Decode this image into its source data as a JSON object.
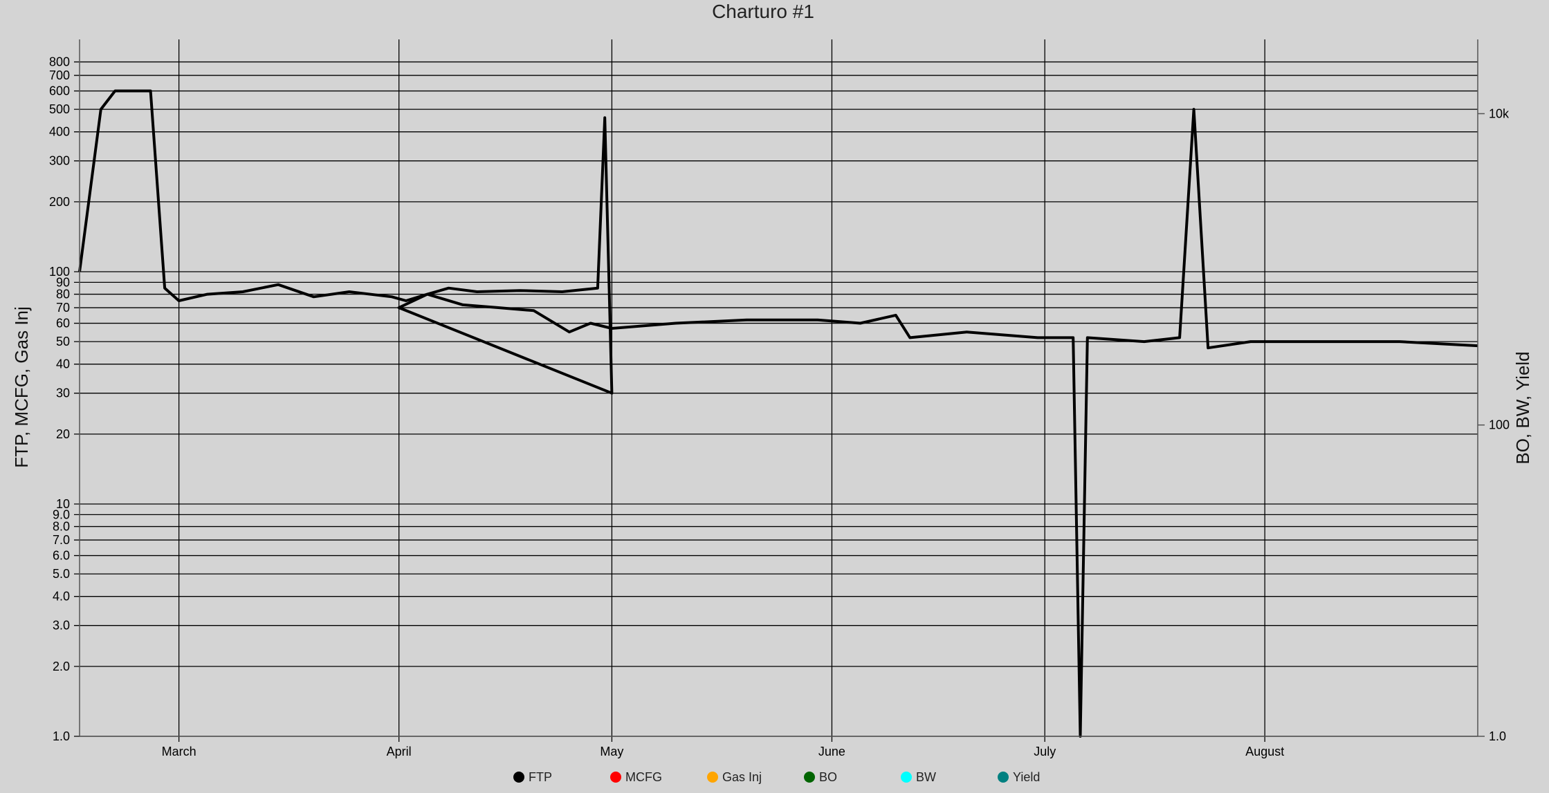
{
  "chart_data": {
    "type": "line",
    "title": "Charturo #1",
    "ylabel_left": "FTP, MCFG, Gas Inj",
    "ylabel_right": "BO, BW, Yield",
    "y_left": {
      "scale": "log",
      "range": [
        1,
        1000
      ],
      "ticks": [
        "800",
        "700",
        "600",
        "500",
        "400",
        "300",
        "200",
        "100",
        "90",
        "80",
        "70",
        "60",
        "50",
        "40",
        "30",
        "20",
        "10",
        "9.0",
        "8.0",
        "7.0",
        "6.0",
        "5.0",
        "4.0",
        "3.0",
        "2.0",
        "1.0"
      ]
    },
    "y_right": {
      "scale": "log",
      "range": [
        1,
        30000
      ],
      "ticks": [
        "10k",
        "100",
        "1.0"
      ]
    },
    "x_axis": {
      "type": "date",
      "range": [
        "2023-02-15",
        "2023-08-31"
      ],
      "ticks": [
        "March",
        "April",
        "May",
        "June",
        "July",
        "August"
      ]
    },
    "grid": true,
    "legend_position": "bottom",
    "series": [
      {
        "name": "FTP",
        "axis": "left",
        "color": "#000000",
        "points": [
          [
            "02-15",
            100
          ],
          [
            "02-18",
            500
          ],
          [
            "02-20",
            600
          ],
          [
            "02-25",
            600
          ],
          [
            "02-27",
            85
          ],
          [
            "03-01",
            75
          ],
          [
            "03-05",
            80
          ],
          [
            "03-10",
            82
          ],
          [
            "03-15",
            88
          ],
          [
            "03-20",
            78
          ],
          [
            "03-25",
            82
          ],
          [
            "03-31",
            78
          ],
          [
            "04-02",
            75
          ],
          [
            "04-05",
            80
          ],
          [
            "04-08",
            85
          ],
          [
            "04-12",
            82
          ],
          [
            "04-18",
            83
          ],
          [
            "04-24",
            82
          ],
          [
            "04-29",
            85
          ],
          [
            "04-30",
            460
          ],
          [
            "04-31",
            30
          ],
          [
            "04-01",
            70
          ],
          [
            "04-05",
            80
          ],
          [
            "04-10",
            72
          ],
          [
            "04-15",
            70
          ],
          [
            "04-20",
            68
          ],
          [
            "04-25",
            55
          ],
          [
            "04-28",
            60
          ],
          [
            "05-01",
            57
          ],
          [
            "05-10",
            60
          ],
          [
            "05-20",
            62
          ],
          [
            "05-30",
            62
          ],
          [
            "06-05",
            60
          ],
          [
            "06-10",
            65
          ],
          [
            "06-12",
            52
          ],
          [
            "06-20",
            55
          ],
          [
            "06-30",
            52
          ],
          [
            "07-05",
            52
          ],
          [
            "07-06",
            1
          ],
          [
            "07-07",
            52
          ],
          [
            "07-15",
            50
          ],
          [
            "07-20",
            52
          ],
          [
            "07-22",
            500
          ],
          [
            "07-24",
            47
          ],
          [
            "07-30",
            50
          ],
          [
            "08-10",
            50
          ],
          [
            "08-20",
            50
          ],
          [
            "08-31",
            48
          ]
        ]
      },
      {
        "name": "MCFG",
        "axis": "left",
        "color": "#ff0000"
      },
      {
        "name": "Gas Inj",
        "axis": "left",
        "color": "#ffa500"
      },
      {
        "name": "BO",
        "axis": "right",
        "color": "#006400"
      },
      {
        "name": "BW",
        "axis": "right",
        "color": "#00ffff"
      },
      {
        "name": "Yield",
        "axis": "right",
        "color": "#008080"
      }
    ]
  }
}
